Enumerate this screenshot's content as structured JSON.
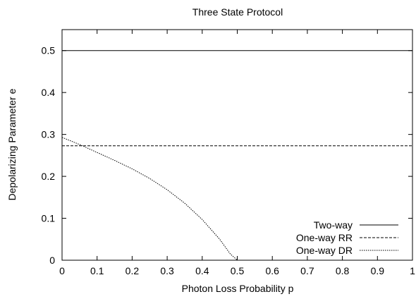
{
  "chart_data": {
    "type": "line",
    "title": "Three State Protocol",
    "xlabel": "Photon Loss Probability p",
    "ylabel": "Depolarizing Parameter e",
    "xlim": [
      0,
      1
    ],
    "ylim": [
      0,
      0.55
    ],
    "xticks": [
      "0",
      "0.1",
      "0.2",
      "0.3",
      "0.4",
      "0.5",
      "0.6",
      "0.7",
      "0.8",
      "0.9",
      "1"
    ],
    "yticks": [
      "0",
      "0.1",
      "0.2",
      "0.3",
      "0.4",
      "0.5"
    ],
    "grid": false,
    "legend_position": "bottom-right",
    "series": [
      {
        "name": "Two-way",
        "dash": "solid",
        "x": [
          0,
          1
        ],
        "y": [
          0.5,
          0.5
        ]
      },
      {
        "name": "One-way RR",
        "dash": "dashed",
        "x": [
          0,
          1
        ],
        "y": [
          0.273,
          0.273
        ]
      },
      {
        "name": "One-way DR",
        "dash": "dotted",
        "x": [
          0,
          0.05,
          0.1,
          0.15,
          0.2,
          0.25,
          0.3,
          0.35,
          0.4,
          0.45,
          0.48,
          0.5,
          0.6,
          0.7,
          0.8,
          0.9,
          1.0
        ],
        "y": [
          0.293,
          0.276,
          0.257,
          0.238,
          0.218,
          0.195,
          0.168,
          0.136,
          0.097,
          0.05,
          0.015,
          0.0,
          0.0,
          0.0,
          0.0,
          0.0,
          0.0
        ]
      }
    ]
  }
}
